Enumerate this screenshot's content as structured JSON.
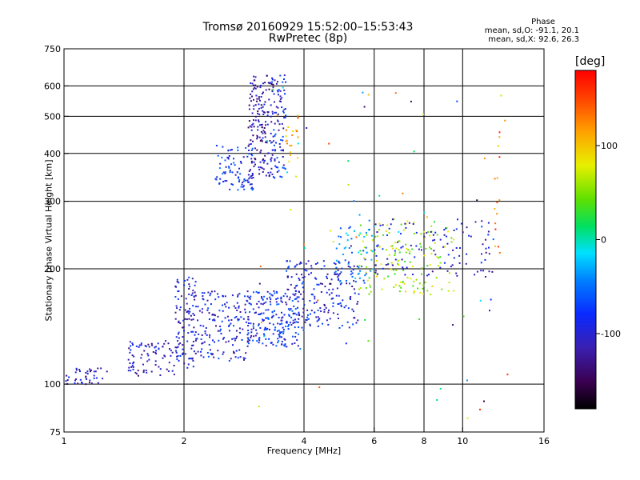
{
  "chart_data": {
    "type": "scatter",
    "title": "Tromsø 20160929 15:52:00–15:53:43",
    "subtitle": "RwPretec (8p)",
    "xlabel": "Frequency [MHz]",
    "ylabel": "Stationary phase Virtual Height [km]",
    "x_scale": "log",
    "y_scale": "log",
    "xlim": [
      1,
      16
    ],
    "ylim": [
      75,
      750
    ],
    "x_ticks": [
      1,
      2,
      4,
      6,
      8,
      10,
      16
    ],
    "y_ticks": [
      75,
      100,
      200,
      300,
      400,
      500,
      600,
      750
    ],
    "grid": true,
    "phase_info": {
      "title": "Phase",
      "line_o": "mean, sd,O: -91.1, 20.1",
      "line_x": "mean, sd,X:  92.6, 26.3"
    },
    "colorbar": {
      "label": "[deg]",
      "range": [
        -180,
        180
      ],
      "ticks": [
        100,
        0,
        -100
      ]
    },
    "clusters": [
      {
        "x0": 1.0,
        "x1": 1.3,
        "y0": 100,
        "y1": 110,
        "phase": -110,
        "n": 40
      },
      {
        "x0": 1.45,
        "x1": 1.9,
        "y0": 105,
        "y1": 130,
        "phase": -105,
        "n": 80
      },
      {
        "x0": 1.9,
        "x1": 2.15,
        "y0": 110,
        "y1": 190,
        "phase": -100,
        "n": 110
      },
      {
        "x0": 2.15,
        "x1": 2.9,
        "y0": 115,
        "y1": 175,
        "phase": -95,
        "n": 160
      },
      {
        "x0": 2.9,
        "x1": 3.9,
        "y0": 125,
        "y1": 175,
        "phase": -85,
        "n": 200
      },
      {
        "x0": 3.6,
        "x1": 5.5,
        "y0": 140,
        "y1": 210,
        "phase": -95,
        "n": 200
      },
      {
        "x0": 4.8,
        "x1": 6.0,
        "y0": 180,
        "y1": 260,
        "phase": -40,
        "n": 60
      },
      {
        "x0": 5.5,
        "x1": 9.5,
        "y0": 170,
        "y1": 270,
        "phase": 60,
        "n": 150
      },
      {
        "x0": 6.0,
        "x1": 12.0,
        "y0": 190,
        "y1": 270,
        "phase": -100,
        "n": 110
      },
      {
        "x0": 2.4,
        "x1": 3.0,
        "y0": 320,
        "y1": 420,
        "phase": -80,
        "n": 90
      },
      {
        "x0": 2.9,
        "x1": 3.35,
        "y0": 340,
        "y1": 640,
        "phase": -120,
        "n": 160
      },
      {
        "x0": 3.3,
        "x1": 3.6,
        "y0": 340,
        "y1": 640,
        "phase": -90,
        "n": 90
      },
      {
        "x0": 3.6,
        "x1": 3.9,
        "y0": 380,
        "y1": 510,
        "phase": 120,
        "n": 20
      },
      {
        "x0": 12.0,
        "x1": 12.4,
        "y0": 220,
        "y1": 480,
        "phase": 130,
        "n": 15
      },
      {
        "x0": 3.0,
        "x1": 13.0,
        "y0": 80,
        "y1": 620,
        "phase": 0,
        "n": 70
      }
    ]
  }
}
